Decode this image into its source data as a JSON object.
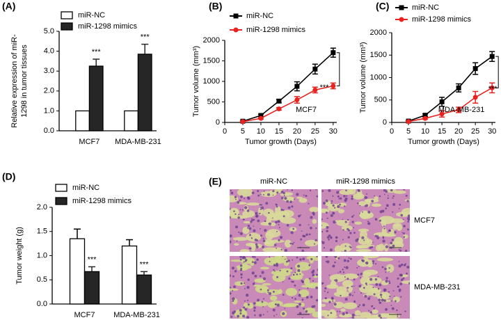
{
  "chart_data": [
    {
      "type": "bar",
      "panel_label": "(A)",
      "y_label": [
        "Relative expression of miR-",
        "1298 in tumor tissues"
      ],
      "categories": [
        "MCF7",
        "MDA-MB-231"
      ],
      "series": [
        {
          "name": "miR-NC",
          "color": "#ffffff",
          "values": [
            1.0,
            1.0
          ],
          "errors": [
            0,
            0
          ]
        },
        {
          "name": "miR-1298 mimics",
          "color": "#262626",
          "values": [
            3.25,
            3.85
          ],
          "errors": [
            0.35,
            0.5
          ],
          "labels": [
            "***",
            "***"
          ]
        }
      ],
      "ylim": [
        0,
        5
      ],
      "yticks": [
        {
          "value": 0,
          "label": "0.0"
        },
        {
          "value": 1,
          "label": "1.0"
        },
        {
          "value": 2,
          "label": "2.0"
        },
        {
          "value": 3,
          "label": "3.0"
        },
        {
          "value": 4,
          "label": "4.0"
        },
        {
          "value": 5,
          "label": "5.0"
        }
      ]
    },
    {
      "type": "line",
      "panel_label": "(B)",
      "y_label": "Tumor volume (mm³)",
      "x_label": "Tumor growth (Days)",
      "x": [
        5,
        10,
        15,
        20,
        25,
        30
      ],
      "series": [
        {
          "name": "miR-NC",
          "color": "#000000",
          "marker": "square",
          "values": [
            30,
            170,
            520,
            880,
            1300,
            1700
          ],
          "errors": [
            10,
            30,
            40,
            110,
            120,
            110
          ]
        },
        {
          "name": "miR-1298 mimics",
          "color": "#e8231f",
          "marker": "circle",
          "values": [
            20,
            100,
            330,
            550,
            790,
            890
          ],
          "errors": [
            10,
            20,
            30,
            80,
            70,
            70
          ]
        }
      ],
      "annotations": [
        "MCF7",
        "***"
      ],
      "xlim": [
        0,
        31
      ],
      "xticks": [
        0,
        5,
        10,
        15,
        20,
        25,
        30
      ],
      "ylim": [
        0,
        2000
      ],
      "yticks": [
        0,
        500,
        1000,
        1500,
        2000
      ]
    },
    {
      "type": "line",
      "panel_label": "(C)",
      "y_label": "Tumor volume (mm³)",
      "x_label": "Tumor growth (Days)",
      "x": [
        5,
        10,
        15,
        20,
        25,
        30
      ],
      "series": [
        {
          "name": "miR-NC",
          "color": "#000000",
          "marker": "square",
          "values": [
            30,
            160,
            460,
            770,
            1200,
            1470
          ],
          "errors": [
            10,
            30,
            100,
            90,
            130,
            110
          ]
        },
        {
          "name": "miR-1298 mimics",
          "color": "#e8231f",
          "marker": "circle",
          "values": [
            20,
            90,
            190,
            280,
            560,
            770
          ],
          "errors": [
            10,
            20,
            70,
            60,
            130,
            110
          ]
        }
      ],
      "annotations": [
        "MDA-MB-231",
        "***"
      ],
      "xlim": [
        0,
        31
      ],
      "xticks": [
        0,
        5,
        10,
        15,
        20,
        25,
        30
      ],
      "ylim": [
        0,
        2000
      ],
      "yticks": [
        0,
        500,
        1000,
        1500,
        2000
      ]
    },
    {
      "type": "bar",
      "panel_label": "(D)",
      "y_label": "Tumor weight (g)",
      "categories": [
        "MCF7",
        "MDA-MB-231"
      ],
      "series": [
        {
          "name": "miR-NC",
          "color": "#ffffff",
          "values": [
            1.35,
            1.2
          ],
          "errors": [
            0.2,
            0.13
          ]
        },
        {
          "name": "miR-1298 mimics",
          "color": "#262626",
          "values": [
            0.67,
            0.6
          ],
          "errors": [
            0.1,
            0.07
          ],
          "labels": [
            "***",
            "***"
          ]
        }
      ],
      "ylim": [
        0,
        2
      ],
      "yticks": [
        {
          "value": 0,
          "label": "0.0"
        },
        {
          "value": 0.5,
          "label": "0.5"
        },
        {
          "value": 1,
          "label": "1.0"
        },
        {
          "value": 1.5,
          "label": "1.5"
        },
        {
          "value": 2,
          "label": "2.0"
        }
      ]
    }
  ],
  "image_panel": {
    "panel_label": "(E)",
    "columns": [
      "miR-NC",
      "miR-1298 mimics"
    ],
    "rows": [
      "MCF7",
      "MDA-MB-231"
    ]
  }
}
